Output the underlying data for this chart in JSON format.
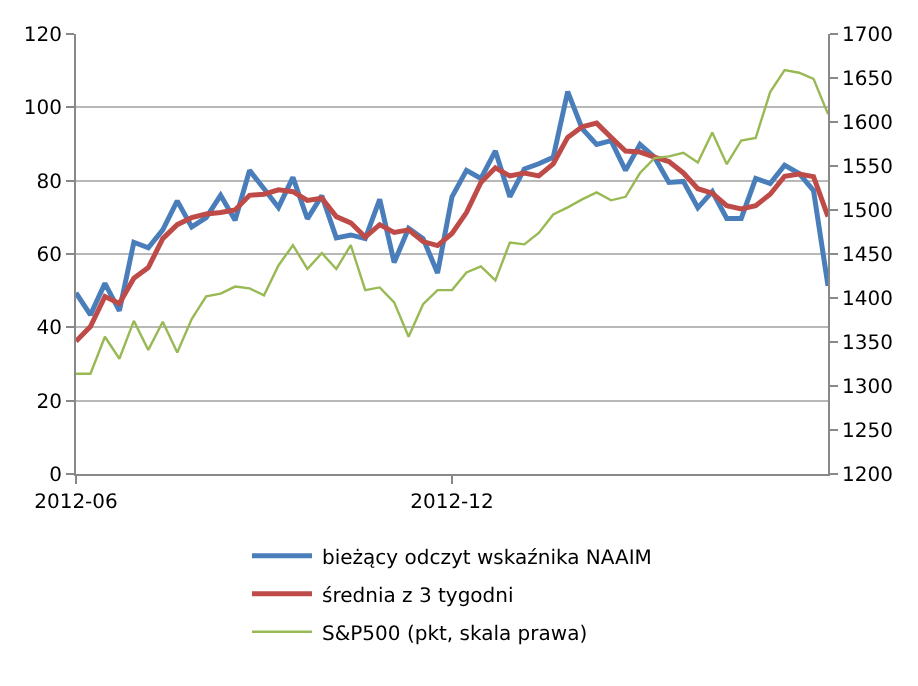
{
  "chart_data": {
    "type": "line",
    "categories": [
      "2012-06",
      null,
      null,
      null,
      null,
      null,
      null,
      null,
      null,
      null,
      null,
      null,
      null,
      null,
      null,
      null,
      null,
      null,
      null,
      null,
      null,
      null,
      null,
      null,
      null,
      null,
      "2012-12",
      null,
      null,
      null,
      null,
      null,
      null,
      null,
      null,
      null,
      null,
      null,
      null,
      null,
      null,
      null,
      null,
      null,
      null,
      null,
      null,
      null,
      null,
      null,
      null,
      null,
      null
    ],
    "series": [
      {
        "name": "bieżący odczyt wskaźnika NAAIM",
        "color": "#4a7ebb",
        "values": [
          49.4,
          43.4,
          52,
          44.5,
          63.2,
          61.7,
          66.6,
          74.5,
          67.4,
          69.9,
          76,
          69.2,
          82.8,
          77.8,
          72.7,
          80.9,
          69.6,
          75.9,
          64.4,
          65.2,
          64.2,
          74.9,
          57.7,
          67,
          64.2,
          54.8,
          75.6,
          82.8,
          80.6,
          88.1,
          75.6,
          83.2,
          84.6,
          86.4,
          104.3,
          94.2,
          89.9,
          90.9,
          82.8,
          89.9,
          86.4,
          79.5,
          79.8,
          72.6,
          77,
          69.7,
          69.7,
          80.6,
          79.2,
          84.2,
          82,
          77.3,
          51.3
        ]
      },
      {
        "name": "średnia z 3 tygodni",
        "color": "#be4b48",
        "values": [
          36.2,
          40.2,
          48.4,
          46.5,
          53.4,
          56.3,
          64.2,
          68,
          69.9,
          70.9,
          71.3,
          72,
          76,
          76.3,
          77.5,
          77,
          74.6,
          75.2,
          70.2,
          68.5,
          64.6,
          68,
          65.9,
          66.6,
          63.4,
          62.3,
          65.6,
          71.3,
          79.5,
          83.5,
          81.3,
          82.1,
          81.3,
          84.6,
          91.8,
          94.7,
          95.7,
          91.8,
          88.1,
          87.8,
          86.4,
          85.2,
          82.1,
          77.8,
          76.6,
          73.2,
          72.3,
          73.2,
          76.3,
          81.2,
          81.8,
          81.1,
          70.2
        ]
      },
      {
        "name": "S&P500 (pkt, skala prawa)",
        "color": "#98b954",
        "axis": "y2",
        "values": [
          1314,
          1314,
          1356,
          1331,
          1374,
          1341,
          1373,
          1338,
          1376,
          1402,
          1405,
          1413,
          1411,
          1403,
          1437,
          1460,
          1433,
          1451,
          1433,
          1460,
          1409,
          1412,
          1395,
          1356,
          1393,
          1409,
          1409,
          1429,
          1436,
          1420,
          1463,
          1461,
          1474,
          1495,
          1503,
          1512,
          1520,
          1511,
          1515,
          1542,
          1559,
          1561,
          1565,
          1554,
          1588,
          1552,
          1579,
          1582,
          1634,
          1659,
          1656,
          1649,
          1609
        ]
      }
    ],
    "ylim": [
      0,
      120
    ],
    "yticks": [
      0,
      20,
      40,
      60,
      80,
      100,
      120
    ],
    "y2lim": [
      1200,
      1700
    ],
    "y2ticks": [
      1200,
      1250,
      1300,
      1350,
      1400,
      1450,
      1500,
      1550,
      1600,
      1650,
      1700
    ],
    "grid": "y",
    "legend": "bottom",
    "marker": "none"
  }
}
